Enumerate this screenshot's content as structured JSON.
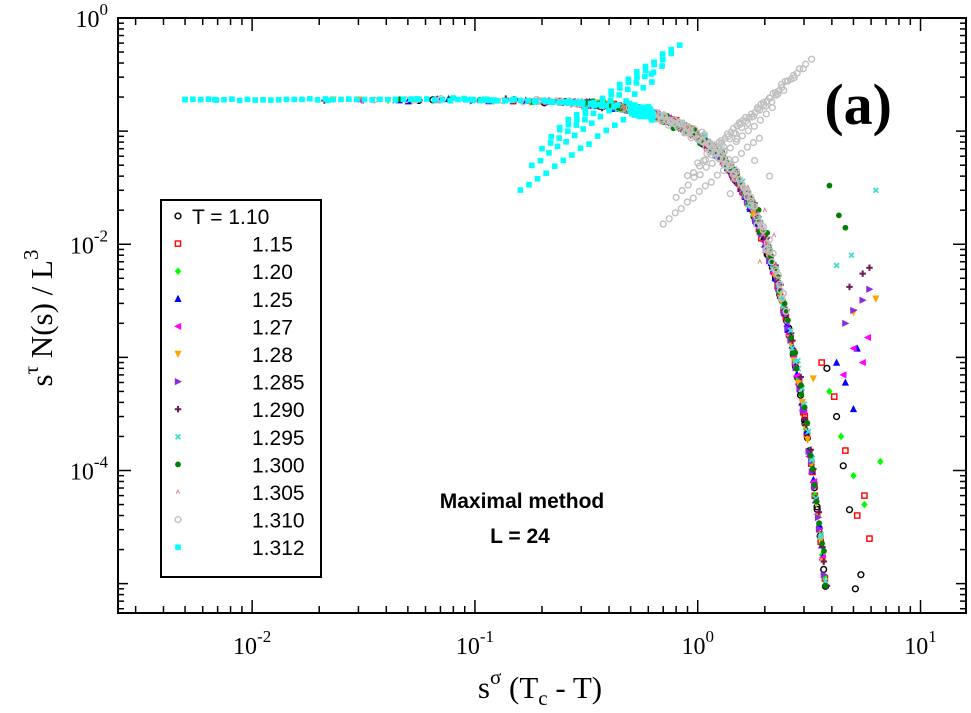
{
  "chart_data": {
    "type": "scatter",
    "panel_label": "(a)",
    "xlabel": {
      "base": "s",
      "sup": "σ",
      "rest": " (T",
      "sub": "c",
      "tail": " - T)"
    },
    "ylabel": {
      "base": "s",
      "sup": "τ",
      "mid": " N(s) / L",
      "sup2": "3"
    },
    "x_scale": "log",
    "y_scale": "log",
    "xlim": [
      0.0025,
      16
    ],
    "ylim": [
      5.5e-06,
      1
    ],
    "x_ticks": [
      {
        "value": 0.01,
        "base": "10",
        "exp": "-2"
      },
      {
        "value": 0.1,
        "base": "10",
        "exp": "-1"
      },
      {
        "value": 1,
        "base": "10",
        "exp": "0"
      },
      {
        "value": 10,
        "base": "10",
        "exp": "1"
      }
    ],
    "y_ticks": [
      {
        "value": 0.0001,
        "base": "10",
        "exp": "-4"
      },
      {
        "value": 0.01,
        "base": "10",
        "exp": "-2"
      },
      {
        "value": 1,
        "base": "10",
        "exp": "0"
      }
    ],
    "annotation": [
      "Maximal method",
      "L = 24"
    ],
    "legend_position": "center-left",
    "series": [
      {
        "name": "T = 1.10",
        "color": "#000000",
        "marker": "circle-open",
        "x0": 0.4,
        "x_end": 5.3,
        "scatter": 0.06,
        "tail": "down",
        "tail_points": [
          [
            5.1,
            9e-06
          ],
          [
            5.4,
            1.2e-05
          ],
          [
            4.8,
            4.5e-05
          ],
          [
            4.5,
            0.00011
          ],
          [
            4.2,
            0.0003
          ],
          [
            3.8,
            0.0008
          ]
        ]
      },
      {
        "name": "1.15",
        "color": "#ff0000",
        "marker": "square-open",
        "x0": 0.35,
        "x_end": 5.7,
        "scatter": 0.07,
        "tail": "down",
        "tail_points": [
          [
            5.9,
            2.5e-05
          ],
          [
            5.2,
            4e-05
          ],
          [
            5.6,
            6e-05
          ],
          [
            4.6,
            0.00015
          ],
          [
            4.1,
            0.00045
          ],
          [
            3.6,
            0.0009
          ]
        ]
      },
      {
        "name": "1.20",
        "color": "#00ff00",
        "marker": "diamond",
        "x0": 0.3,
        "x_end": 6.5,
        "scatter": 0.07,
        "tail": "down",
        "tail_points": [
          [
            6.6,
            0.00012
          ],
          [
            5.6,
            5e-05
          ],
          [
            5.0,
            9e-05
          ],
          [
            4.4,
            0.0002
          ],
          [
            3.9,
            0.0005
          ]
        ]
      },
      {
        "name": "1.25",
        "color": "#0000ff",
        "marker": "triangle-up",
        "x0": 0.3,
        "x_end": 5.5,
        "scatter": 0.07,
        "tail": "down",
        "tail_points": [
          [
            5.0,
            0.00035
          ],
          [
            4.6,
            0.0006
          ],
          [
            4.2,
            0.0009
          ],
          [
            5.2,
            0.0012
          ]
        ]
      },
      {
        "name": "1.27",
        "color": "#ff00ff",
        "marker": "triangle-left",
        "x0": 0.3,
        "x_end": 5.8,
        "scatter": 0.07,
        "tail": "down",
        "tail_points": [
          [
            5.5,
            0.0009
          ],
          [
            5.0,
            0.0012
          ],
          [
            4.5,
            0.0007
          ],
          [
            5.8,
            0.0015
          ]
        ]
      },
      {
        "name": "1.28",
        "color": "#ffa500",
        "marker": "triangle-down",
        "x0": 0.35,
        "x_end": 6.4,
        "scatter": 0.07,
        "tail": "down",
        "tail_points": [
          [
            6.3,
            0.0033
          ],
          [
            3.3,
            0.00065
          ],
          [
            5.0,
            0.0025
          ]
        ]
      },
      {
        "name": "1.285",
        "color": "#8a2be2",
        "marker": "triangle-right",
        "x0": 0.3,
        "x_end": 6.0,
        "scatter": 0.07,
        "tail": "down",
        "tail_points": [
          [
            5.9,
            0.004
          ],
          [
            5.5,
            0.0032
          ],
          [
            5.0,
            0.0026
          ],
          [
            4.6,
            0.002
          ]
        ]
      },
      {
        "name": "1.290",
        "color": "#6b1a5a",
        "marker": "plus",
        "x0": 0.3,
        "x_end": 6.0,
        "scatter": 0.08,
        "tail": "up",
        "tail_points": [
          [
            5.9,
            0.0062
          ],
          [
            5.5,
            0.0055
          ],
          [
            4.8,
            0.0042
          ]
        ]
      },
      {
        "name": "1.295",
        "color": "#40e0d0",
        "marker": "x-small",
        "x0": 0.3,
        "x_end": 6.3,
        "scatter": 0.1,
        "tail": "up",
        "tail_points": [
          [
            6.3,
            0.03
          ],
          [
            4.9,
            0.008
          ],
          [
            4.2,
            0.0065
          ]
        ]
      },
      {
        "name": "1.300",
        "color": "#008000",
        "marker": "circle-filled",
        "x0": 0.3,
        "x_end": 4.5,
        "scatter": 0.12,
        "tail": "up",
        "tail_points": [
          [
            3.9,
            0.033
          ],
          [
            4.3,
            0.018
          ],
          [
            4.6,
            0.014
          ]
        ]
      },
      {
        "name": "1.305",
        "color": "#e08080",
        "marker": "tick",
        "x0": 0.45,
        "x_end": 2.3,
        "scatter": 0.1,
        "tail": "up",
        "tail_points": [
          [
            2.0,
            0.02
          ],
          [
            2.2,
            0.012
          ],
          [
            1.9,
            0.007
          ]
        ]
      },
      {
        "name": "1.310",
        "color": "#c0c0c0",
        "marker": "circle-open",
        "x0": 0.5,
        "x_end": 2.5,
        "scatter": 0.12,
        "tail": "up",
        "tail_points": [
          [
            1.5,
            0.085
          ],
          [
            1.8,
            0.055
          ],
          [
            2.1,
            0.04
          ],
          [
            1.4,
            0.028
          ]
        ]
      },
      {
        "name": "1.312",
        "color": "#00ffff",
        "marker": "square-filled",
        "x0": 0.5,
        "x_end": 0.62,
        "scatter": 0.15,
        "tail": "up",
        "tail_points": [
          [
            0.005,
            0.19
          ],
          [
            0.0068,
            0.19
          ],
          [
            0.62,
            0.32
          ],
          [
            0.55,
            0.16
          ]
        ]
      }
    ]
  }
}
